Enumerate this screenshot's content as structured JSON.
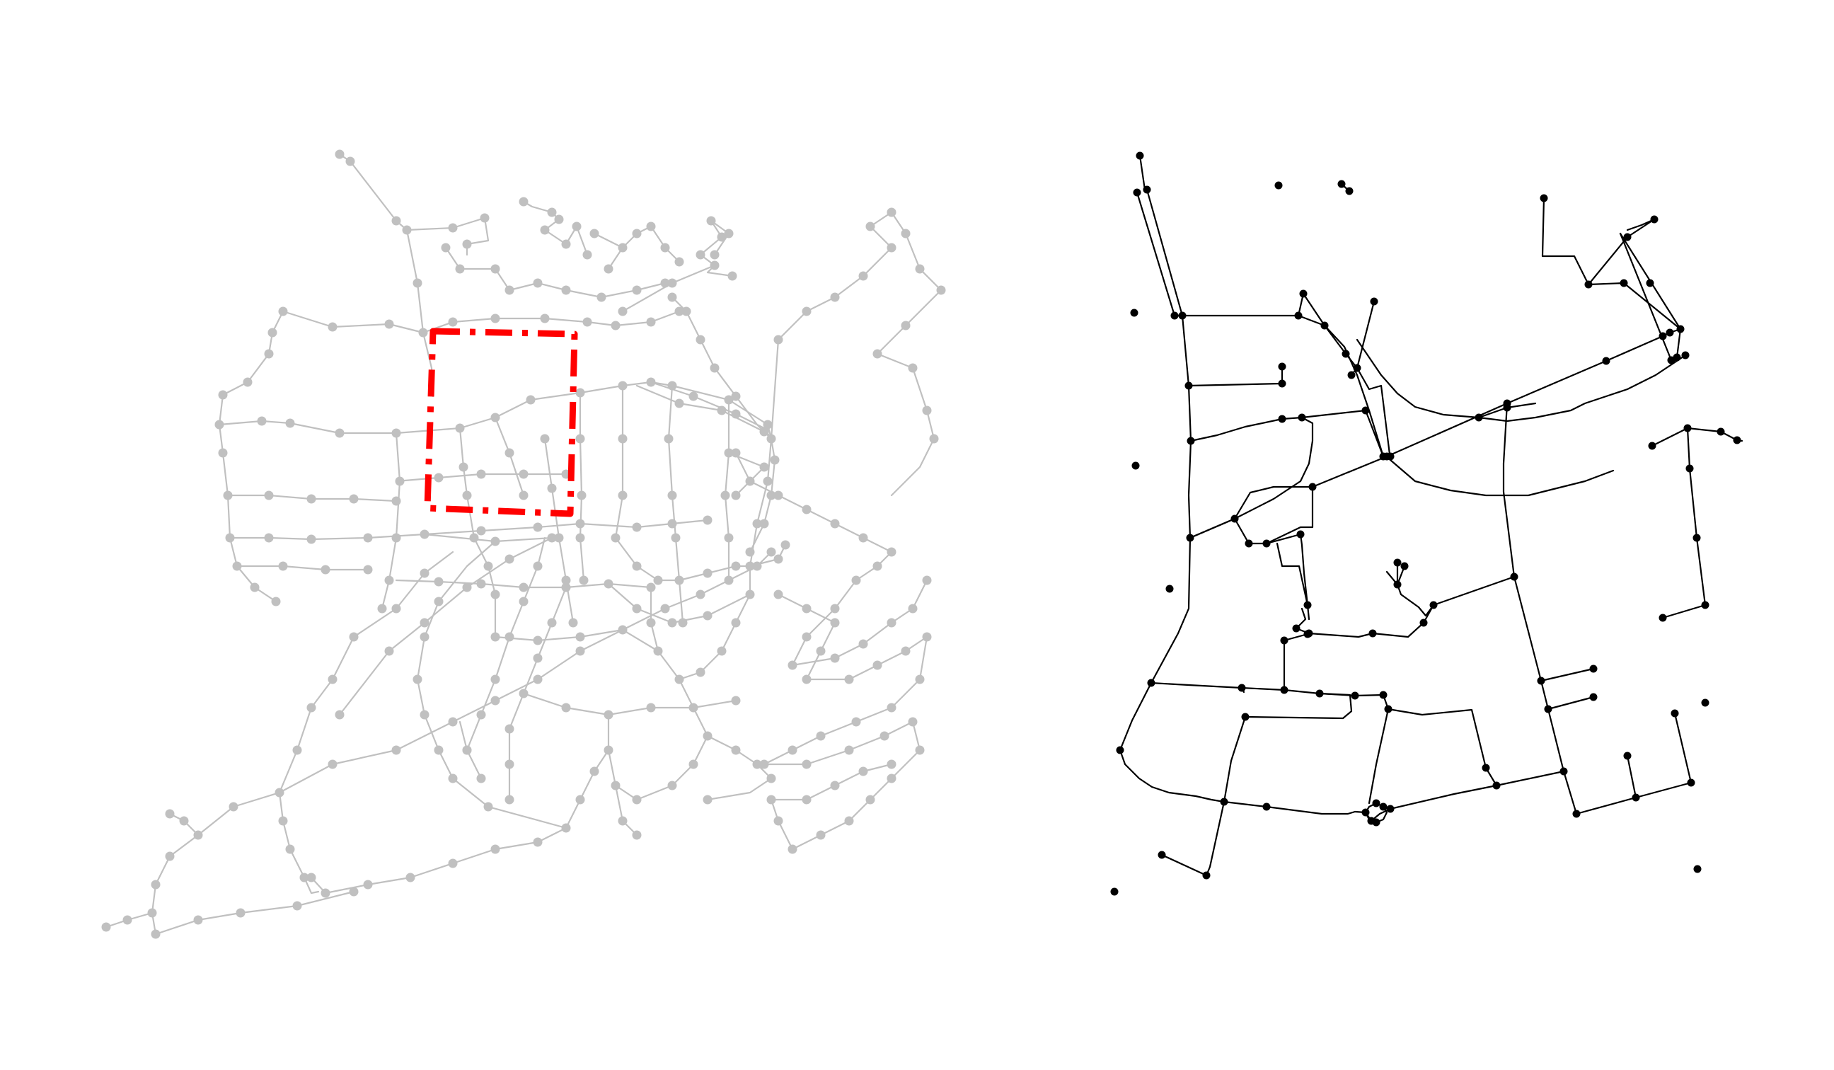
{
  "colors": {
    "background": "#ffffff",
    "overview_network": "#c0c0c0",
    "selection_box": "#ff0000",
    "detail_network": "#000000"
  },
  "panels": [
    {
      "name": "overview-network-map",
      "description_visible_text": ""
    },
    {
      "name": "detail-network-map",
      "description_visible_text": ""
    }
  ]
}
